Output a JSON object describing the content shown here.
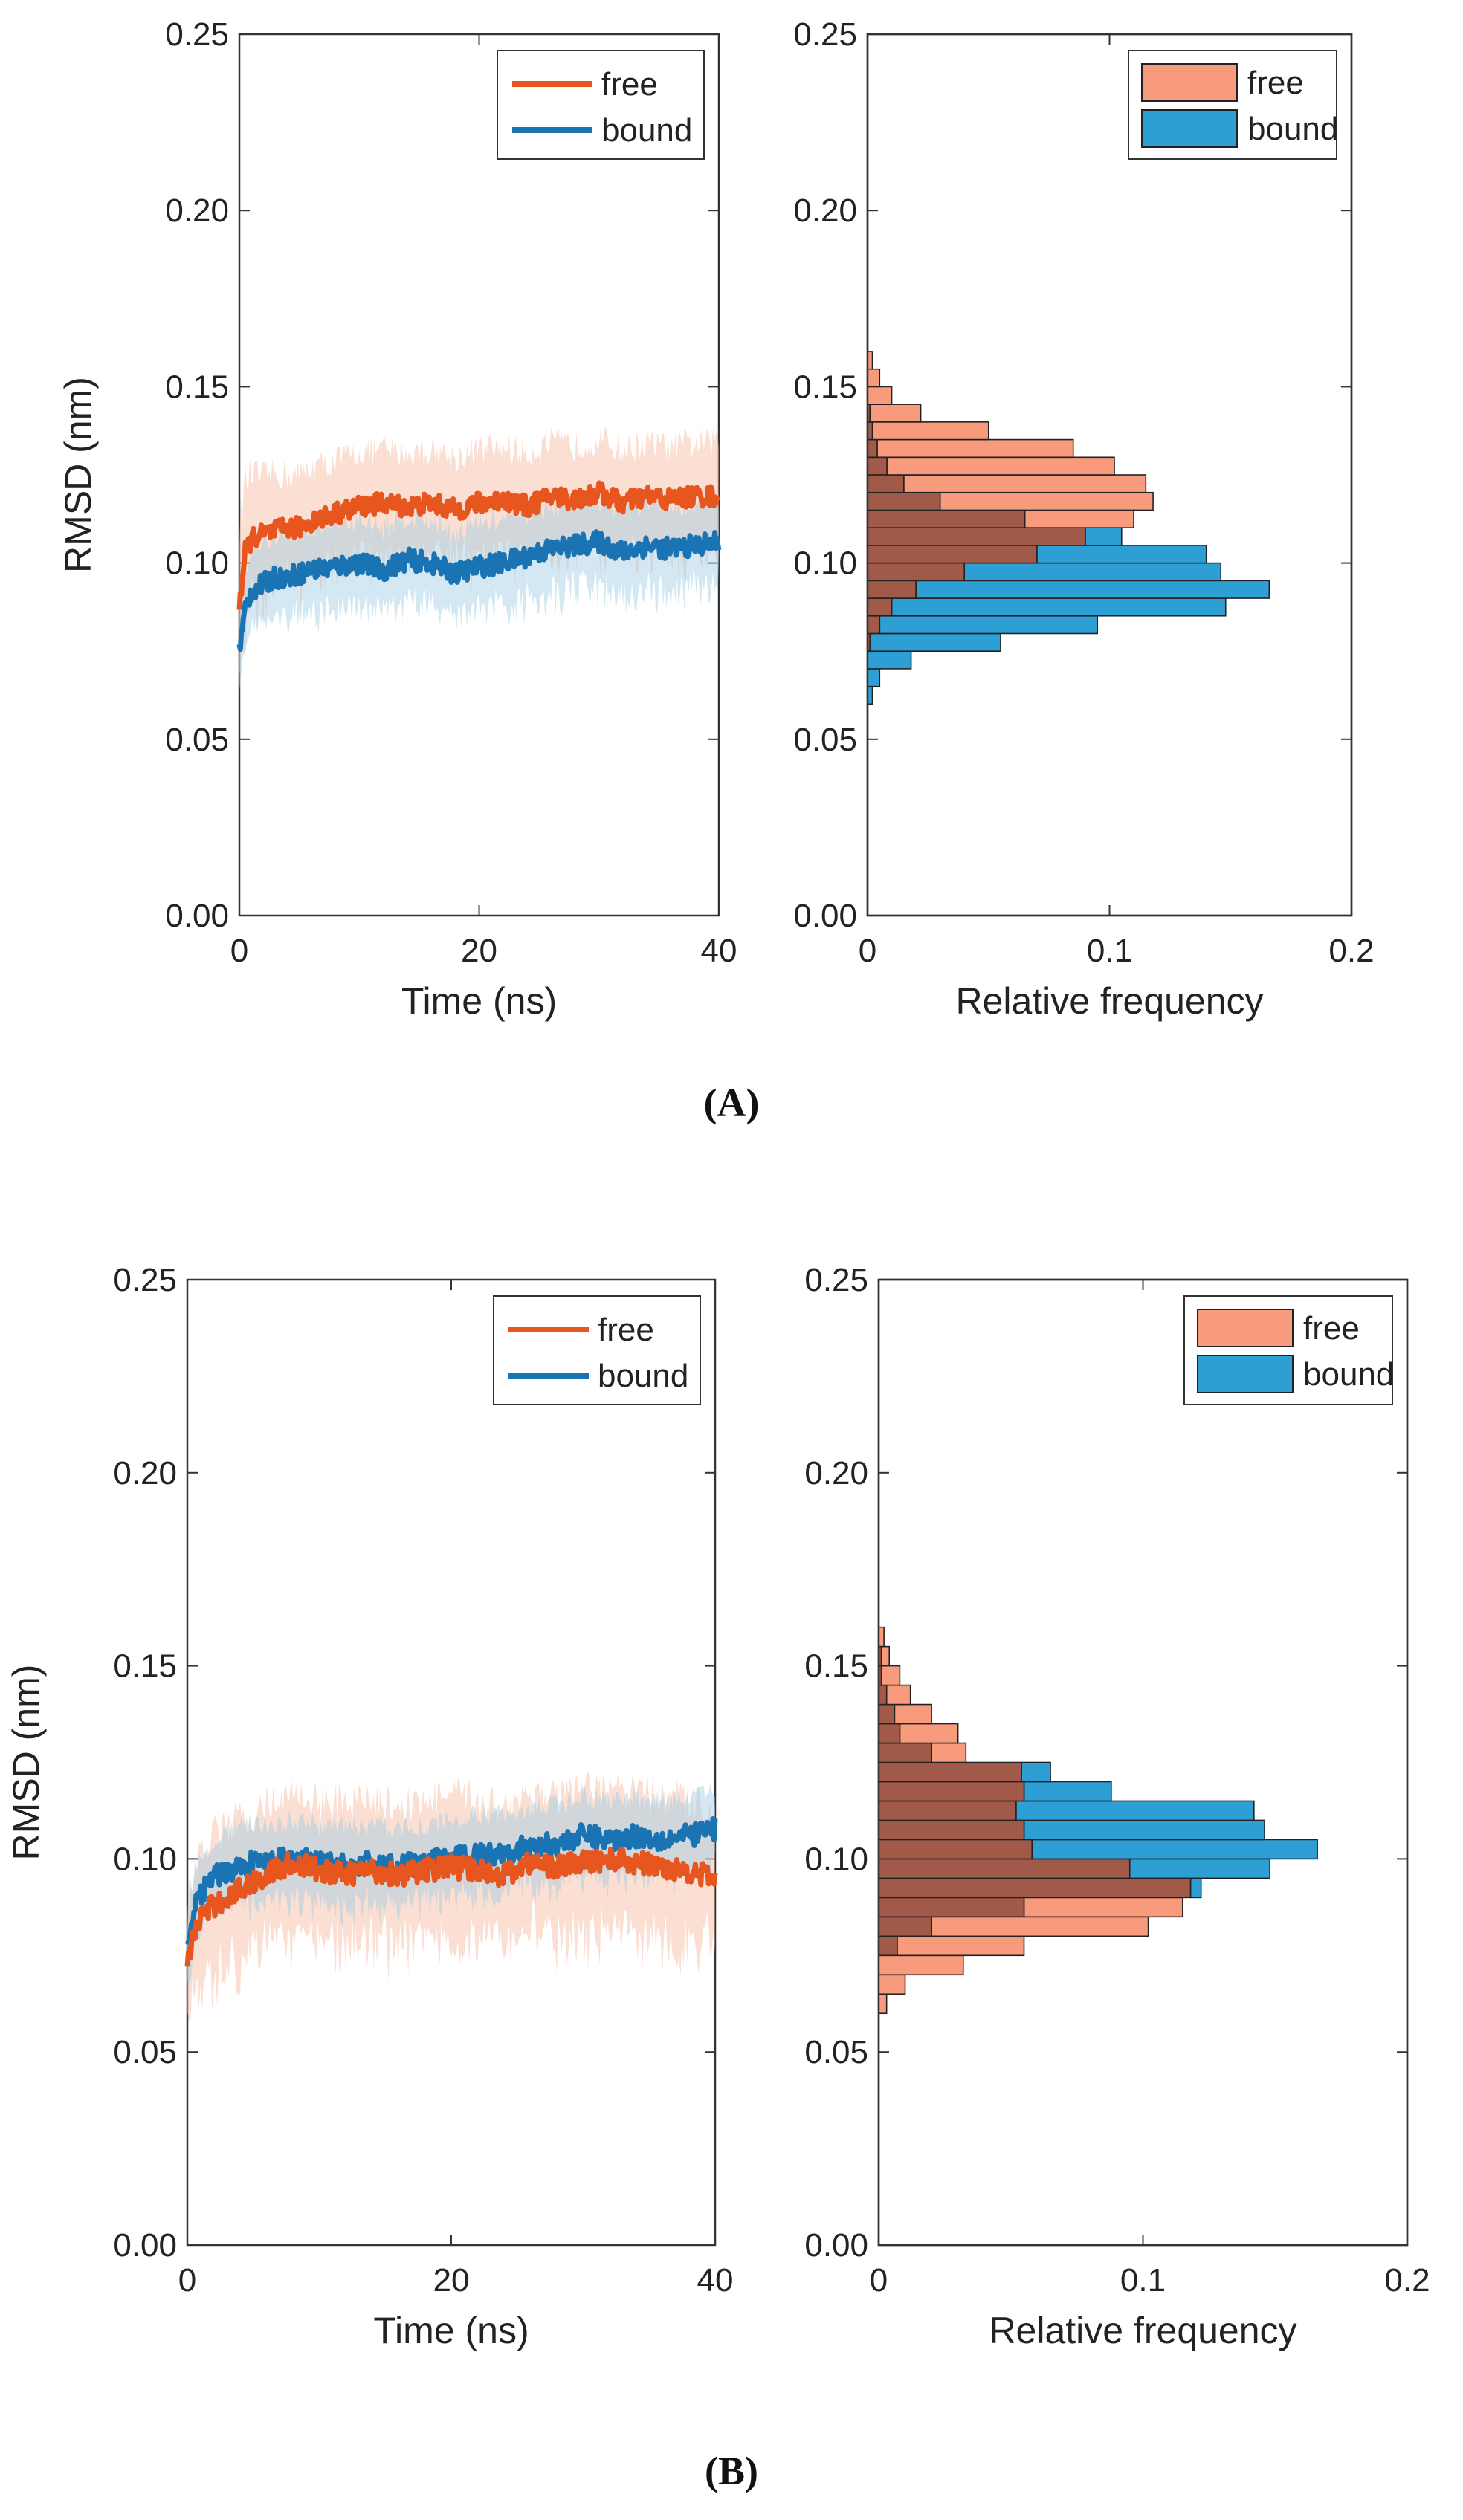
{
  "colors": {
    "free_line": "#E8561F",
    "bound_line": "#1A73B3",
    "free_band": "#F6B99D",
    "bound_band": "#9ECBE4",
    "free_bar": "#F89A7C",
    "bound_bar": "#2E9FD4",
    "overlap_bar": "#A1594A",
    "axis": "#333333"
  },
  "panels": [
    {
      "label": "(A)",
      "timeseries": {
        "xlabel": "Time (ns)",
        "ylabel": "RMSD (nm)",
        "xlim": [
          0,
          40
        ],
        "ylim": [
          0,
          0.25
        ],
        "xticks": [
          "0",
          "20",
          "40"
        ],
        "yticks": [
          "0.00",
          "0.05",
          "0.10",
          "0.15",
          "0.20",
          "0.25"
        ]
      },
      "histogram": {
        "xlabel": "Relative frequency",
        "xlim": [
          0,
          0.2
        ],
        "ylim": [
          0,
          0.25
        ],
        "xticks": [
          "0",
          "0.1",
          "0.2"
        ],
        "yticks": [
          "0.00",
          "0.05",
          "0.10",
          "0.15",
          "0.20",
          "0.25"
        ]
      },
      "legend": {
        "free": "free",
        "bound": "bound"
      }
    },
    {
      "label": "(B)",
      "timeseries": {
        "xlabel": "Time (ns)",
        "ylabel": "RMSD (nm)",
        "xlim": [
          0,
          40
        ],
        "ylim": [
          0,
          0.25
        ],
        "xticks": [
          "0",
          "20",
          "40"
        ],
        "yticks": [
          "0.00",
          "0.05",
          "0.10",
          "0.15",
          "0.20",
          "0.25"
        ]
      },
      "histogram": {
        "xlabel": "Relative frequency",
        "xlim": [
          0,
          0.2
        ],
        "ylim": [
          0,
          0.25
        ],
        "xticks": [
          "0",
          "0.1",
          "0.2"
        ],
        "yticks": [
          "0.00",
          "0.05",
          "0.10",
          "0.15",
          "0.20",
          "0.25"
        ]
      },
      "legend": {
        "free": "free",
        "bound": "bound"
      }
    }
  ],
  "chart_data": [
    {
      "panel": "A",
      "type": "line",
      "xlabel": "Time (ns)",
      "ylabel": "RMSD (nm)",
      "xlim": [
        0,
        40
      ],
      "ylim": [
        0,
        0.25
      ],
      "grid": false,
      "legend_position": "top-right",
      "x": [
        0,
        0.5,
        1,
        2,
        3,
        4,
        5,
        6,
        8,
        10,
        12,
        14,
        16,
        18,
        20,
        22,
        24,
        26,
        28,
        30,
        32,
        34,
        36,
        38,
        40
      ],
      "series": [
        {
          "name": "free",
          "values": [
            0.088,
            0.103,
            0.107,
            0.108,
            0.109,
            0.11,
            0.11,
            0.112,
            0.114,
            0.116,
            0.117,
            0.116,
            0.117,
            0.115,
            0.117,
            0.118,
            0.116,
            0.119,
            0.118,
            0.12,
            0.117,
            0.119,
            0.118,
            0.119,
            0.119
          ],
          "band": [
            0.022,
            0.02,
            0.018,
            0.016,
            0.016,
            0.015,
            0.015,
            0.015,
            0.015,
            0.015,
            0.015,
            0.015,
            0.015,
            0.015,
            0.015,
            0.015,
            0.015,
            0.015,
            0.015,
            0.015,
            0.015,
            0.015,
            0.015,
            0.015,
            0.015
          ]
        },
        {
          "name": "bound",
          "values": [
            0.075,
            0.087,
            0.092,
            0.094,
            0.096,
            0.096,
            0.097,
            0.098,
            0.099,
            0.1,
            0.098,
            0.101,
            0.1,
            0.097,
            0.099,
            0.1,
            0.102,
            0.104,
            0.105,
            0.106,
            0.103,
            0.105,
            0.104,
            0.105,
            0.106
          ],
          "band": [
            0.012,
            0.012,
            0.012,
            0.012,
            0.012,
            0.012,
            0.012,
            0.012,
            0.012,
            0.012,
            0.012,
            0.012,
            0.012,
            0.012,
            0.012,
            0.012,
            0.012,
            0.012,
            0.012,
            0.012,
            0.012,
            0.012,
            0.012,
            0.012,
            0.012
          ]
        }
      ]
    },
    {
      "panel": "A",
      "type": "bar",
      "xlabel": "Relative frequency",
      "orientation": "horizontal",
      "xlim": [
        0,
        0.2
      ],
      "ylim": [
        0,
        0.25
      ],
      "legend_position": "top-right",
      "bin_width": 0.005,
      "bins": [
        0.06,
        0.065,
        0.07,
        0.075,
        0.08,
        0.085,
        0.09,
        0.095,
        0.1,
        0.105,
        0.11,
        0.115,
        0.12,
        0.125,
        0.13,
        0.135,
        0.14,
        0.145,
        0.15,
        0.155
      ],
      "series": [
        {
          "name": "free",
          "values": [
            0,
            0,
            0,
            0.001,
            0.005,
            0.01,
            0.02,
            0.04,
            0.07,
            0.09,
            0.11,
            0.118,
            0.115,
            0.102,
            0.085,
            0.05,
            0.022,
            0.01,
            0.005,
            0.002
          ]
        },
        {
          "name": "bound",
          "values": [
            0.002,
            0.005,
            0.018,
            0.055,
            0.095,
            0.148,
            0.166,
            0.146,
            0.14,
            0.105,
            0.065,
            0.03,
            0.015,
            0.008,
            0.004,
            0.002,
            0.001,
            0,
            0,
            0
          ]
        }
      ]
    },
    {
      "panel": "B",
      "type": "line",
      "xlabel": "Time (ns)",
      "ylabel": "RMSD (nm)",
      "xlim": [
        0,
        40
      ],
      "ylim": [
        0,
        0.25
      ],
      "grid": false,
      "legend_position": "top-right",
      "x": [
        0,
        0.5,
        1,
        2,
        3,
        4,
        5,
        6,
        8,
        10,
        12,
        14,
        16,
        18,
        20,
        22,
        24,
        26,
        28,
        30,
        32,
        34,
        36,
        38,
        40
      ],
      "series": [
        {
          "name": "free",
          "values": [
            0.073,
            0.08,
            0.085,
            0.088,
            0.09,
            0.092,
            0.094,
            0.096,
            0.099,
            0.097,
            0.096,
            0.097,
            0.096,
            0.097,
            0.098,
            0.097,
            0.096,
            0.099,
            0.098,
            0.099,
            0.1,
            0.099,
            0.098,
            0.097,
            0.095
          ],
          "band": [
            0.014,
            0.016,
            0.017,
            0.018,
            0.018,
            0.018,
            0.018,
            0.018,
            0.018,
            0.018,
            0.018,
            0.018,
            0.018,
            0.018,
            0.018,
            0.018,
            0.018,
            0.018,
            0.018,
            0.018,
            0.018,
            0.018,
            0.018,
            0.018,
            0.018
          ]
        },
        {
          "name": "bound",
          "values": [
            0.075,
            0.086,
            0.091,
            0.095,
            0.097,
            0.098,
            0.099,
            0.099,
            0.1,
            0.099,
            0.098,
            0.099,
            0.098,
            0.099,
            0.1,
            0.101,
            0.102,
            0.103,
            0.104,
            0.106,
            0.105,
            0.106,
            0.105,
            0.106,
            0.108
          ],
          "band": [
            0.01,
            0.01,
            0.01,
            0.01,
            0.01,
            0.01,
            0.01,
            0.01,
            0.01,
            0.01,
            0.01,
            0.01,
            0.01,
            0.01,
            0.01,
            0.01,
            0.01,
            0.01,
            0.01,
            0.01,
            0.01,
            0.01,
            0.01,
            0.01,
            0.01
          ]
        }
      ]
    },
    {
      "panel": "B",
      "type": "bar",
      "xlabel": "Relative frequency",
      "orientation": "horizontal",
      "xlim": [
        0,
        0.2
      ],
      "ylim": [
        0,
        0.25
      ],
      "legend_position": "top-right",
      "bin_width": 0.005,
      "bins": [
        0.06,
        0.065,
        0.07,
        0.075,
        0.08,
        0.085,
        0.09,
        0.095,
        0.1,
        0.105,
        0.11,
        0.115,
        0.12,
        0.125,
        0.13,
        0.135,
        0.14,
        0.145,
        0.15,
        0.155
      ],
      "series": [
        {
          "name": "free",
          "values": [
            0.003,
            0.01,
            0.032,
            0.055,
            0.102,
            0.115,
            0.118,
            0.095,
            0.058,
            0.055,
            0.052,
            0.055,
            0.054,
            0.033,
            0.03,
            0.02,
            0.012,
            0.008,
            0.004,
            0.002
          ]
        },
        {
          "name": "bound",
          "values": [
            0,
            0,
            0,
            0.007,
            0.02,
            0.055,
            0.122,
            0.148,
            0.166,
            0.146,
            0.142,
            0.088,
            0.065,
            0.02,
            0.008,
            0.006,
            0.003,
            0.001,
            0.001,
            0
          ]
        }
      ]
    }
  ]
}
